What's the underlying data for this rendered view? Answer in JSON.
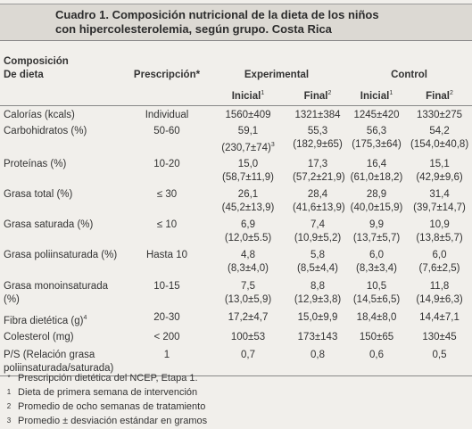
{
  "title": {
    "lines": [
      "Cuadro 1. Composición nutricional de la dieta de los niños",
      "con hipercolesterolemia, según grupo. Costa Rica"
    ]
  },
  "header": {
    "composition": [
      "Composición",
      "De dieta"
    ],
    "prescription": "Prescripción*",
    "groups": [
      "Experimental",
      "Control"
    ],
    "subheads": [
      {
        "text": "Inicial",
        "note": "1"
      },
      {
        "text": "Final",
        "note": "2"
      },
      {
        "text": "Inicial",
        "note": "1"
      },
      {
        "text": "Final",
        "note": "2"
      }
    ]
  },
  "table": {
    "rows": [
      {
        "label": "Calorías (kcals)",
        "prescription": "Individual",
        "cells": [
          {
            "lines": [
              "1560±409"
            ]
          },
          {
            "lines": [
              "1321±384"
            ]
          },
          {
            "lines": [
              "1245±420"
            ]
          },
          {
            "lines": [
              "1330±275"
            ]
          }
        ]
      },
      {
        "label": "Carbohidratos (%)",
        "prescription": "50-60",
        "cells": [
          {
            "lines": [
              "59,1",
              "(230,7±74)"
            ],
            "note": "3"
          },
          {
            "lines": [
              "55,3",
              "(182,9±65)"
            ]
          },
          {
            "lines": [
              "56,3",
              "(175,3±64)"
            ]
          },
          {
            "lines": [
              "54,2",
              "(154,0±40,8)"
            ]
          }
        ]
      },
      {
        "label": "Proteínas (%)",
        "prescription": "10-20",
        "cells": [
          {
            "lines": [
              "15,0",
              "(58,7±11,9)"
            ]
          },
          {
            "lines": [
              "17,3",
              "(57,2±21,9)"
            ]
          },
          {
            "lines": [
              "16,4",
              "(61,0±18,2)"
            ]
          },
          {
            "lines": [
              "15,1",
              "(42,9±9,6)"
            ]
          }
        ]
      },
      {
        "label": "Grasa total (%)",
        "prescription": "≤ 30",
        "cells": [
          {
            "lines": [
              "26,1",
              "(45,2±13,9)"
            ]
          },
          {
            "lines": [
              "28,4",
              "(41,6±13,9)"
            ]
          },
          {
            "lines": [
              "28,9",
              "(40,0±15,9)"
            ]
          },
          {
            "lines": [
              "31,4",
              "(39,7±14,7)"
            ]
          }
        ]
      },
      {
        "label": "Grasa saturada (%)",
        "prescription": "≤ 10",
        "cells": [
          {
            "lines": [
              "6,9",
              "(12,0±5.5)"
            ]
          },
          {
            "lines": [
              "7,4",
              "(10,9±5,2)"
            ]
          },
          {
            "lines": [
              "9,9",
              "(13,7±5,7)"
            ]
          },
          {
            "lines": [
              "10,9",
              "(13,8±5,7)"
            ]
          }
        ]
      },
      {
        "label": "Grasa poliinsaturada (%)",
        "prescription": "Hasta 10",
        "cells": [
          {
            "lines": [
              "4,8",
              "(8,3±4,0)"
            ]
          },
          {
            "lines": [
              "5,8",
              "(8,5±4,4)"
            ]
          },
          {
            "lines": [
              "6,0",
              "(8,3±3,4)"
            ]
          },
          {
            "lines": [
              "6,0",
              "(7,6±2,5)"
            ]
          }
        ]
      },
      {
        "label": "Grasa monoinsaturada (%)",
        "prescription": "10-15",
        "cells": [
          {
            "lines": [
              "7,5",
              "(13,0±5,9)"
            ]
          },
          {
            "lines": [
              "8,8",
              "(12,9±3,8)"
            ]
          },
          {
            "lines": [
              "10,5",
              "(14,5±6,5)"
            ]
          },
          {
            "lines": [
              "11,8",
              "(14,9±6,3)"
            ]
          }
        ]
      },
      {
        "label": "Fibra dietética (g)",
        "label_note": "4",
        "prescription": "20-30",
        "cells": [
          {
            "lines": [
              "17,2±4,7"
            ]
          },
          {
            "lines": [
              "15,0±9,9"
            ]
          },
          {
            "lines": [
              "18,4±8,0"
            ]
          },
          {
            "lines": [
              "14,4±7,1"
            ]
          }
        ]
      },
      {
        "label": "Colesterol (mg)",
        "prescription": "< 200",
        "cells": [
          {
            "lines": [
              "100±53"
            ]
          },
          {
            "lines": [
              "173±143"
            ]
          },
          {
            "lines": [
              "150±65"
            ]
          },
          {
            "lines": [
              "130±45"
            ]
          }
        ]
      },
      {
        "label": "P/S (Relación grasa poliinsaturada/saturada)",
        "prescription": "1",
        "cells": [
          {
            "lines": [
              "0,7"
            ]
          },
          {
            "lines": [
              "0,8"
            ]
          },
          {
            "lines": [
              "0,6"
            ]
          },
          {
            "lines": [
              "0,5"
            ]
          }
        ]
      }
    ]
  },
  "footnotes": [
    {
      "marker": "*",
      "text": "Prescripción dietética del NCEP, Etapa 1."
    },
    {
      "marker": "1",
      "text": "Dieta de primera semana de intervención"
    },
    {
      "marker": "2",
      "text": "Promedio de ocho semanas de tratamiento"
    },
    {
      "marker": "3",
      "text": "Promedio ± desviación estándar en gramos"
    }
  ]
}
